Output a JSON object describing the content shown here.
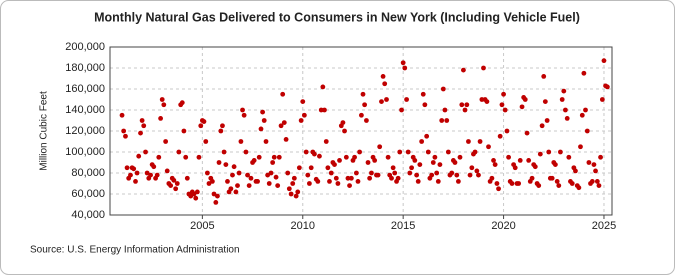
{
  "chart_data": {
    "type": "scatter",
    "title": "Monthly Natural Gas Delivered to Consumers in New York (Including Vehicle Fuel)",
    "y_label": "Million Cubic Feet",
    "source": "Source: U.S. Energy Information Administration",
    "color": "#c00000",
    "grid": true,
    "xlim": [
      2000.4,
      2025.4
    ],
    "xticks": [
      2005,
      2010,
      2015,
      2020,
      2025
    ],
    "ylim": [
      40000,
      200000
    ],
    "yticks": [
      {
        "value": 40000,
        "label": "40,000"
      },
      {
        "value": 60000,
        "label": "60,000"
      },
      {
        "value": 80000,
        "label": "80,000"
      },
      {
        "value": 100000,
        "label": "100,000"
      },
      {
        "value": 120000,
        "label": "120,000"
      },
      {
        "value": 140000,
        "label": "140,000"
      },
      {
        "value": 160000,
        "label": "160,000"
      },
      {
        "value": 180000,
        "label": "180,000"
      },
      {
        "value": 200000,
        "label": "200,000"
      }
    ],
    "x": [
      2001.0,
      2001.08,
      2001.17,
      2001.25,
      2001.33,
      2001.42,
      2001.5,
      2001.58,
      2001.67,
      2001.75,
      2001.83,
      2001.92,
      2002.0,
      2002.08,
      2002.17,
      2002.25,
      2002.33,
      2002.42,
      2002.5,
      2002.58,
      2002.67,
      2002.75,
      2002.83,
      2002.92,
      2003.0,
      2003.08,
      2003.17,
      2003.25,
      2003.33,
      2003.42,
      2003.5,
      2003.58,
      2003.67,
      2003.75,
      2003.83,
      2003.92,
      2004.0,
      2004.08,
      2004.17,
      2004.25,
      2004.33,
      2004.42,
      2004.5,
      2004.58,
      2004.67,
      2004.75,
      2004.83,
      2004.92,
      2005.0,
      2005.08,
      2005.17,
      2005.25,
      2005.33,
      2005.42,
      2005.5,
      2005.58,
      2005.67,
      2005.75,
      2005.83,
      2005.92,
      2006.0,
      2006.08,
      2006.17,
      2006.25,
      2006.33,
      2006.42,
      2006.5,
      2006.58,
      2006.67,
      2006.75,
      2006.83,
      2006.92,
      2007.0,
      2007.08,
      2007.17,
      2007.25,
      2007.33,
      2007.42,
      2007.5,
      2007.58,
      2007.67,
      2007.75,
      2007.83,
      2007.92,
      2008.0,
      2008.08,
      2008.17,
      2008.25,
      2008.33,
      2008.42,
      2008.5,
      2008.58,
      2008.67,
      2008.75,
      2008.83,
      2008.92,
      2009.0,
      2009.08,
      2009.17,
      2009.25,
      2009.33,
      2009.42,
      2009.5,
      2009.58,
      2009.67,
      2009.75,
      2009.83,
      2009.92,
      2010.0,
      2010.08,
      2010.17,
      2010.25,
      2010.33,
      2010.42,
      2010.5,
      2010.58,
      2010.67,
      2010.75,
      2010.83,
      2010.92,
      2011.0,
      2011.08,
      2011.17,
      2011.25,
      2011.33,
      2011.42,
      2011.5,
      2011.58,
      2011.67,
      2011.75,
      2011.83,
      2011.92,
      2012.0,
      2012.08,
      2012.17,
      2012.25,
      2012.33,
      2012.42,
      2012.5,
      2012.58,
      2012.67,
      2012.75,
      2012.83,
      2012.92,
      2013.0,
      2013.08,
      2013.17,
      2013.25,
      2013.33,
      2013.42,
      2013.5,
      2013.58,
      2013.67,
      2013.75,
      2013.83,
      2013.92,
      2014.0,
      2014.08,
      2014.17,
      2014.25,
      2014.33,
      2014.42,
      2014.5,
      2014.58,
      2014.67,
      2014.75,
      2014.83,
      2014.92,
      2015.0,
      2015.08,
      2015.17,
      2015.25,
      2015.33,
      2015.42,
      2015.5,
      2015.58,
      2015.67,
      2015.75,
      2015.83,
      2015.92,
      2016.0,
      2016.08,
      2016.17,
      2016.25,
      2016.33,
      2016.42,
      2016.5,
      2016.58,
      2016.67,
      2016.75,
      2016.83,
      2016.92,
      2017.0,
      2017.08,
      2017.17,
      2017.25,
      2017.33,
      2017.42,
      2017.5,
      2017.58,
      2017.67,
      2017.75,
      2017.83,
      2017.92,
      2018.0,
      2018.08,
      2018.17,
      2018.25,
      2018.33,
      2018.42,
      2018.5,
      2018.58,
      2018.67,
      2018.75,
      2018.83,
      2018.92,
      2019.0,
      2019.08,
      2019.17,
      2019.25,
      2019.33,
      2019.42,
      2019.5,
      2019.58,
      2019.67,
      2019.75,
      2019.83,
      2019.92,
      2020.0,
      2020.08,
      2020.17,
      2020.25,
      2020.33,
      2020.42,
      2020.5,
      2020.58,
      2020.67,
      2020.75,
      2020.83,
      2020.92,
      2021.0,
      2021.08,
      2021.17,
      2021.25,
      2021.33,
      2021.42,
      2021.5,
      2021.58,
      2021.67,
      2021.75,
      2021.83,
      2021.92,
      2022.0,
      2022.08,
      2022.17,
      2022.25,
      2022.33,
      2022.42,
      2022.5,
      2022.58,
      2022.67,
      2022.75,
      2022.83,
      2022.92,
      2023.0,
      2023.08,
      2023.17,
      2023.25,
      2023.33,
      2023.42,
      2023.5,
      2023.58,
      2023.67,
      2023.75,
      2023.83,
      2023.92,
      2024.0,
      2024.08,
      2024.17,
      2024.25,
      2024.33,
      2024.42,
      2024.5,
      2024.58,
      2024.67,
      2024.75,
      2024.83,
      2024.92,
      2025.0,
      2025.08,
      2025.17
    ],
    "values": [
      135000,
      120000,
      115000,
      85000,
      75000,
      78000,
      85000,
      84000,
      72000,
      80000,
      96000,
      118000,
      130000,
      125000,
      100000,
      80000,
      75000,
      78000,
      88000,
      86000,
      75000,
      78000,
      95000,
      132000,
      150000,
      145000,
      110000,
      82000,
      70000,
      68000,
      75000,
      73000,
      65000,
      70000,
      100000,
      145000,
      147000,
      120000,
      95000,
      75000,
      60000,
      58000,
      62000,
      60000,
      56000,
      62000,
      95000,
      125000,
      130000,
      129000,
      110000,
      80000,
      70000,
      75000,
      72000,
      60000,
      52000,
      58000,
      90000,
      120000,
      125000,
      100000,
      88000,
      72000,
      62000,
      65000,
      78000,
      86000,
      62000,
      68000,
      80000,
      110000,
      140000,
      135000,
      100000,
      78000,
      68000,
      75000,
      90000,
      92000,
      72000,
      72000,
      95000,
      122000,
      138000,
      130000,
      110000,
      78000,
      70000,
      80000,
      90000,
      95000,
      76000,
      68000,
      95000,
      125000,
      155000,
      128000,
      112000,
      80000,
      65000,
      60000,
      70000,
      75000,
      58000,
      62000,
      85000,
      130000,
      148000,
      135000,
      100000,
      78000,
      70000,
      85000,
      100000,
      98000,
      74000,
      72000,
      96000,
      140000,
      162000,
      140000,
      110000,
      85000,
      72000,
      80000,
      90000,
      88000,
      75000,
      70000,
      92000,
      125000,
      128000,
      120000,
      95000,
      75000,
      68000,
      75000,
      92000,
      95000,
      80000,
      72000,
      100000,
      135000,
      155000,
      145000,
      130000,
      90000,
      75000,
      80000,
      95000,
      92000,
      78000,
      78000,
      105000,
      148000,
      172000,
      165000,
      150000,
      95000,
      78000,
      75000,
      85000,
      80000,
      72000,
      75000,
      100000,
      140000,
      185000,
      180000,
      150000,
      100000,
      80000,
      85000,
      95000,
      92000,
      78000,
      72000,
      88000,
      110000,
      155000,
      145000,
      115000,
      100000,
      75000,
      78000,
      90000,
      95000,
      80000,
      72000,
      88000,
      130000,
      160000,
      140000,
      130000,
      100000,
      78000,
      80000,
      92000,
      90000,
      78000,
      72000,
      95000,
      145000,
      178000,
      140000,
      145000,
      110000,
      78000,
      85000,
      98000,
      100000,
      82000,
      78000,
      110000,
      150000,
      180000,
      150000,
      148000,
      105000,
      72000,
      75000,
      92000,
      88000,
      70000,
      65000,
      115000,
      145000,
      155000,
      140000,
      120000,
      95000,
      72000,
      70000,
      88000,
      85000,
      70000,
      70000,
      92000,
      143000,
      152000,
      150000,
      118000,
      92000,
      72000,
      75000,
      88000,
      86000,
      70000,
      68000,
      98000,
      125000,
      172000,
      148000,
      130000,
      100000,
      75000,
      75000,
      90000,
      88000,
      72000,
      68000,
      100000,
      150000,
      158000,
      140000,
      132000,
      95000,
      72000,
      70000,
      85000,
      82000,
      68000,
      66000,
      105000,
      135000,
      175000,
      140000,
      120000,
      90000,
      70000,
      72000,
      88000,
      82000,
      72000,
      68000,
      95000,
      150000,
      187000,
      163000,
      162000
    ]
  }
}
